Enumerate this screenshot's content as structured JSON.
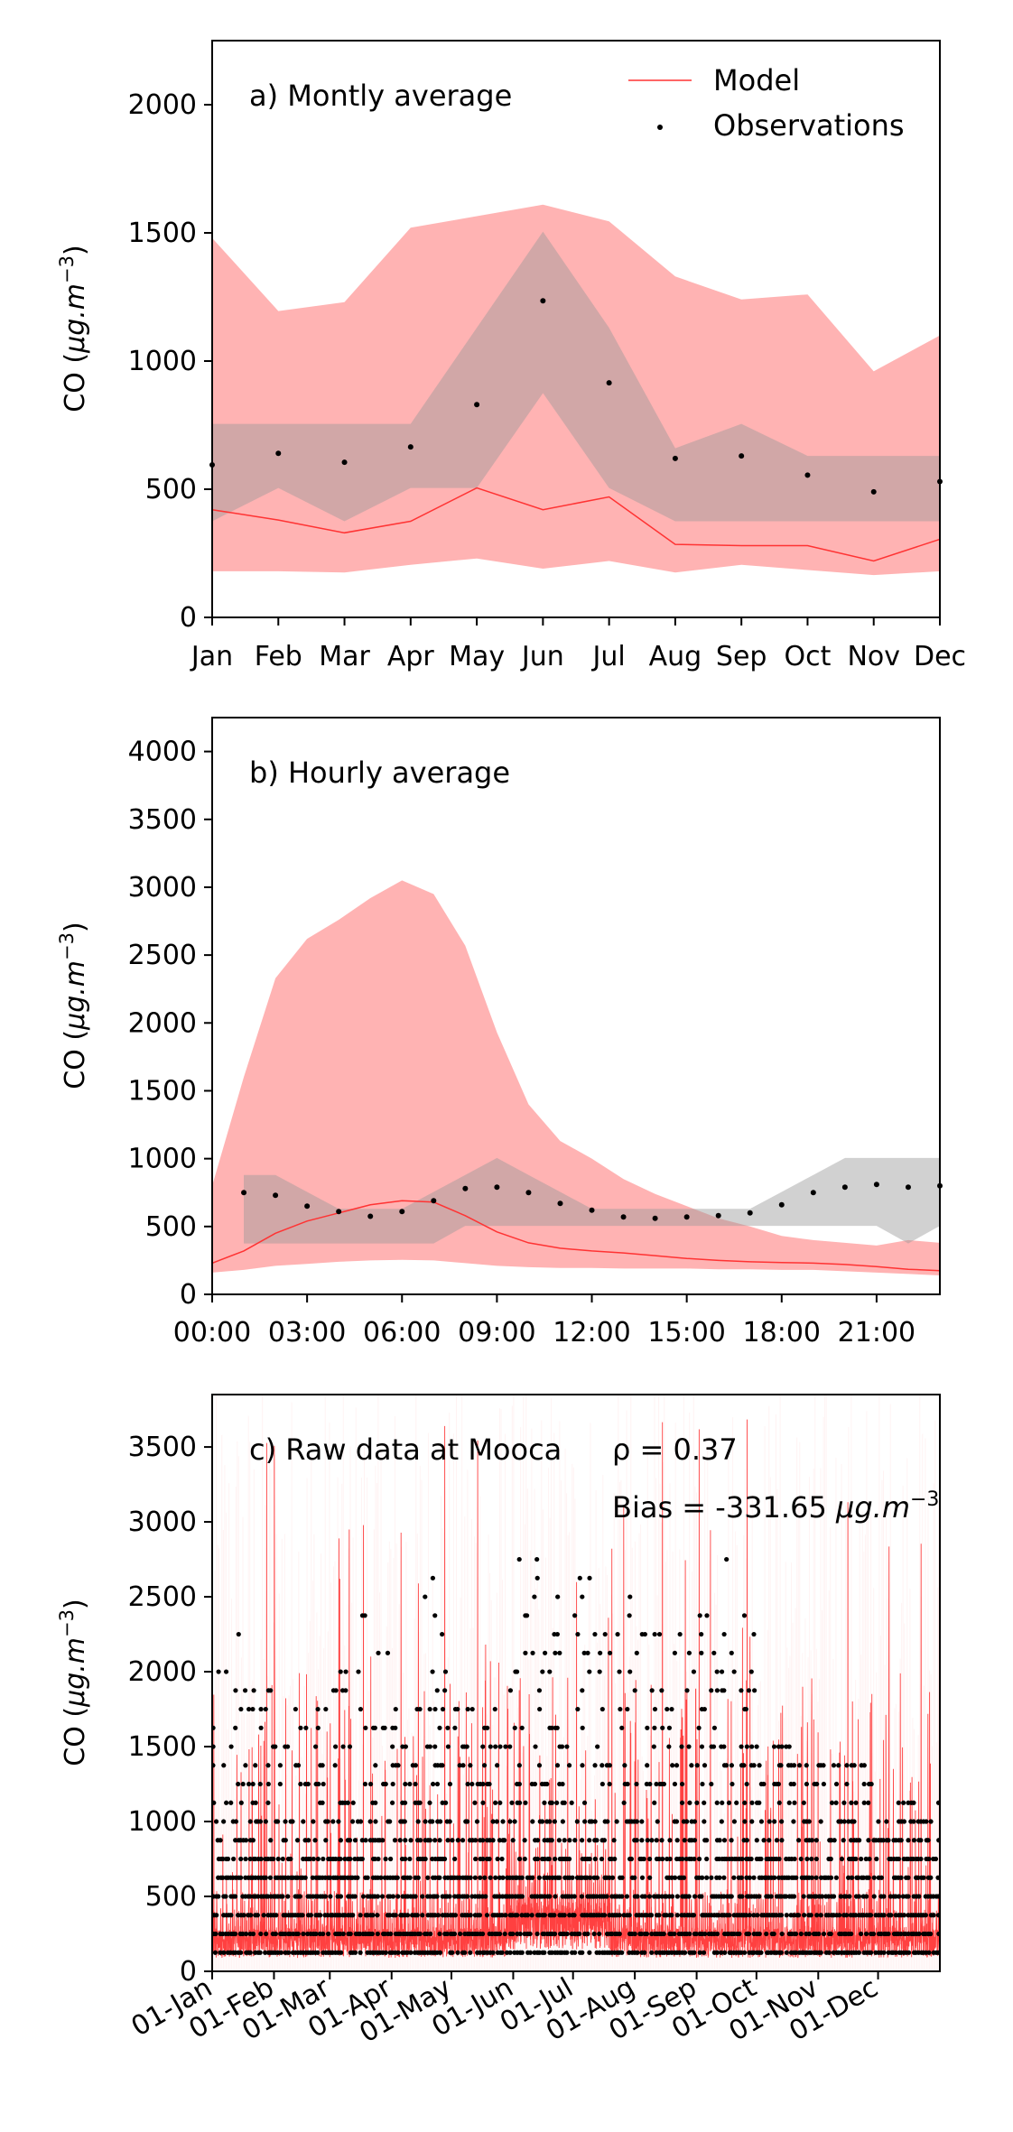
{
  "chart_data": [
    {
      "type": "line",
      "title": "a) Montly average",
      "ylabel": "CO (μg.m⁻³)",
      "ylabel_parts": {
        "main": "CO (",
        "unit": "μg.m",
        "exp": "−3",
        "close": ")"
      },
      "ylim": [
        0,
        2250
      ],
      "yticks": [
        0,
        500,
        1000,
        1500,
        2000
      ],
      "categories": [
        "Jan",
        "Feb",
        "Mar",
        "Apr",
        "May",
        "Jun",
        "Jul",
        "Aug",
        "Sep",
        "Oct",
        "Nov",
        "Dec"
      ],
      "legend": {
        "position": "top-right",
        "entries": [
          "Model",
          "Observations"
        ]
      },
      "series": [
        {
          "name": "Model",
          "kind": "line",
          "color": "#ff3333",
          "values": [
            420,
            380,
            330,
            375,
            505,
            420,
            470,
            285,
            280,
            280,
            220,
            305
          ]
        },
        {
          "name": "Observations",
          "kind": "points",
          "color": "#000000",
          "values": [
            595,
            640,
            605,
            665,
            830,
            1235,
            915,
            620,
            630,
            555,
            490,
            530
          ]
        }
      ],
      "bands": [
        {
          "of": "Model",
          "color": "#ff9999",
          "opacity": 0.75,
          "lower": [
            180,
            180,
            175,
            205,
            230,
            190,
            220,
            175,
            205,
            185,
            165,
            180
          ],
          "upper": [
            1480,
            1195,
            1230,
            1520,
            1565,
            1610,
            1545,
            1330,
            1240,
            1260,
            960,
            1100
          ]
        },
        {
          "of": "Observations",
          "color": "#999999",
          "opacity": 0.45,
          "lower": [
            375,
            505,
            375,
            505,
            505,
            875,
            505,
            375,
            375,
            375,
            375,
            375
          ],
          "upper": [
            755,
            755,
            755,
            755,
            1130,
            1505,
            1130,
            660,
            755,
            630,
            630,
            630
          ]
        }
      ]
    },
    {
      "type": "line",
      "title": "b) Hourly average",
      "ylabel": "CO (μg.m⁻³)",
      "ylabel_parts": {
        "main": "CO (",
        "unit": "μg.m",
        "exp": "−3",
        "close": ")"
      },
      "ylim": [
        0,
        4250
      ],
      "yticks": [
        0,
        500,
        1000,
        1500,
        2000,
        2500,
        3000,
        3500,
        4000
      ],
      "xticks": [
        "00:00",
        "03:00",
        "06:00",
        "09:00",
        "12:00",
        "15:00",
        "18:00",
        "21:00"
      ],
      "x": [
        0,
        1,
        2,
        3,
        4,
        5,
        6,
        7,
        8,
        9,
        10,
        11,
        12,
        13,
        14,
        15,
        16,
        17,
        18,
        19,
        20,
        21,
        22,
        23
      ],
      "series": [
        {
          "name": "Model",
          "kind": "line",
          "color": "#ff3333",
          "values": [
            230,
            320,
            450,
            540,
            600,
            660,
            690,
            680,
            580,
            460,
            380,
            340,
            320,
            305,
            285,
            265,
            250,
            240,
            235,
            230,
            220,
            205,
            185,
            175
          ]
        },
        {
          "name": "Observations",
          "kind": "points",
          "color": "#000000",
          "values": [
            null,
            750,
            730,
            650,
            610,
            575,
            610,
            690,
            780,
            790,
            750,
            670,
            620,
            570,
            560,
            570,
            580,
            600,
            660,
            750,
            790,
            810,
            790,
            800
          ]
        }
      ],
      "bands": [
        {
          "of": "Model",
          "color": "#ff9999",
          "opacity": 0.75,
          "lower": [
            160,
            180,
            210,
            225,
            240,
            250,
            255,
            250,
            230,
            210,
            200,
            195,
            195,
            190,
            190,
            190,
            185,
            185,
            180,
            180,
            170,
            160,
            150,
            140
          ],
          "upper": [
            800,
            1600,
            2330,
            2620,
            2760,
            2920,
            3050,
            2950,
            2570,
            1930,
            1400,
            1130,
            1000,
            850,
            740,
            650,
            560,
            500,
            430,
            400,
            380,
            360,
            400,
            380
          ]
        },
        {
          "of": "Observations",
          "color": "#999999",
          "opacity": 0.45,
          "lower": [
            null,
            375,
            375,
            375,
            375,
            375,
            375,
            375,
            505,
            505,
            505,
            505,
            505,
            505,
            505,
            505,
            505,
            505,
            505,
            505,
            505,
            505,
            375,
            505
          ],
          "upper": [
            null,
            880,
            880,
            755,
            630,
            630,
            630,
            755,
            880,
            1005,
            880,
            755,
            630,
            630,
            630,
            630,
            630,
            630,
            755,
            880,
            1005,
            1005,
            1005,
            1005
          ]
        }
      ]
    },
    {
      "type": "scatter",
      "title": "c) Raw data at Mooca",
      "ylabel": "CO (μg.m⁻³)",
      "ylabel_parts": {
        "main": "CO (",
        "unit": "μg.m",
        "exp": "−3",
        "close": ")"
      },
      "ylim": [
        0,
        3850
      ],
      "yticks": [
        0,
        500,
        1000,
        1500,
        2000,
        2500,
        3000,
        3500
      ],
      "xticks": [
        "01-Jan",
        "01-Feb",
        "01-Mar",
        "01-Apr",
        "01-May",
        "01-Jun",
        "01-Jul",
        "01-Aug",
        "01-Sep",
        "01-Oct",
        "01-Nov",
        "01-Dec"
      ],
      "xtick_doy": [
        0,
        31,
        59,
        90,
        120,
        151,
        181,
        212,
        243,
        273,
        304,
        334
      ],
      "xlim_doy": [
        0,
        365
      ],
      "annotations": {
        "rho": "ρ = 0.37",
        "bias_prefix": "Bias = -331.65 ",
        "bias_unit": "μg.m",
        "bias_exp": "−3"
      },
      "observation_levels": [
        125,
        250,
        375,
        500,
        625,
        750,
        875,
        1000,
        1125,
        1250,
        1375,
        1500,
        1625,
        1750,
        1875,
        2000,
        2125,
        2250,
        2375,
        2500,
        2625,
        2750
      ],
      "observation_monthly_max": [
        {
          "start_doy": 0,
          "max": 2250
        },
        {
          "start_doy": 14,
          "max": 1875
        },
        {
          "start_doy": 31,
          "max": 1750
        },
        {
          "start_doy": 59,
          "max": 2000
        },
        {
          "start_doy": 75,
          "max": 2625
        },
        {
          "start_doy": 90,
          "max": 1750
        },
        {
          "start_doy": 105,
          "max": 2750
        },
        {
          "start_doy": 120,
          "max": 1750
        },
        {
          "start_doy": 140,
          "max": 1875
        },
        {
          "start_doy": 151,
          "max": 2750
        },
        {
          "start_doy": 181,
          "max": 2750
        },
        {
          "start_doy": 212,
          "max": 2250
        },
        {
          "start_doy": 243,
          "max": 2750
        },
        {
          "start_doy": 273,
          "max": 1500
        },
        {
          "start_doy": 304,
          "max": 1375
        },
        {
          "start_doy": 334,
          "max": 1125
        }
      ],
      "series": [
        {
          "name": "Model",
          "kind": "line",
          "color": "#ff2020"
        },
        {
          "name": "Observations",
          "kind": "points",
          "color": "#000000"
        }
      ]
    }
  ]
}
